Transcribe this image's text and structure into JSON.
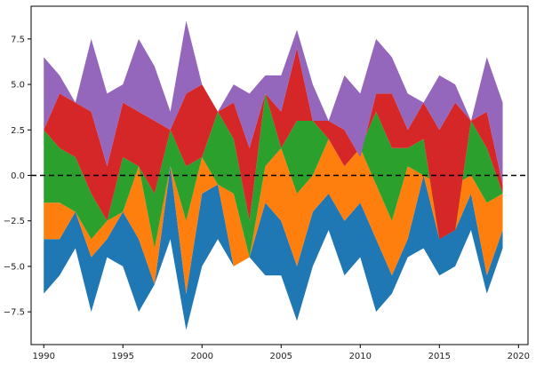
{
  "chart_data": {
    "type": "area",
    "title": "",
    "xlabel": "",
    "ylabel": "",
    "xlim": [
      1989.2,
      2020.6
    ],
    "ylim": [
      -9.3,
      9.3
    ],
    "x": [
      1990,
      1991,
      1992,
      1993,
      1994,
      1995,
      1996,
      1997,
      1998,
      1999,
      2000,
      2001,
      2002,
      2003,
      2004,
      2005,
      2006,
      2007,
      2008,
      2009,
      2010,
      2011,
      2012,
      2013,
      2014,
      2015,
      2016,
      2017,
      2018,
      2019
    ],
    "x_ticks": [
      1990,
      1995,
      2000,
      2005,
      2010,
      2015,
      2020
    ],
    "y_ticks": [
      -7.5,
      -5.0,
      -2.5,
      0.0,
      2.5,
      5.0,
      7.5
    ],
    "x_tick_labels": [
      "1990",
      "1995",
      "2000",
      "2005",
      "2010",
      "2015",
      "2020"
    ],
    "y_tick_labels": [
      "−7.5",
      "−5.0",
      "−2.5",
      "0.0",
      "2.5",
      "5.0",
      "7.5"
    ],
    "reference_line": {
      "y": 0,
      "style": "dashed",
      "color": "#000000"
    },
    "grid": false,
    "legend": "none",
    "boundaries": {
      "bottom": [
        -6.5,
        -5.5,
        -4.0,
        -7.5,
        -4.5,
        -5.0,
        -7.5,
        -6.0,
        -3.5,
        -8.5,
        -5.0,
        -3.5,
        -5.0,
        -4.5,
        -5.5,
        -5.5,
        -8.0,
        -5.0,
        -3.0,
        -5.5,
        -4.5,
        -7.5,
        -6.5,
        -4.5,
        -4.0,
        -5.5,
        -5.0,
        -3.0,
        -6.5,
        -4.0
      ],
      "b1": [
        -3.5,
        -3.5,
        -2.0,
        -4.5,
        -3.5,
        -2.0,
        -3.5,
        -6.0,
        0.5,
        -6.5,
        -1.0,
        -0.5,
        -5.0,
        -4.5,
        -1.5,
        -2.5,
        -5.0,
        -2.0,
        -1.0,
        -2.5,
        -1.5,
        -3.5,
        -5.5,
        -3.5,
        0.0,
        -3.5,
        -3.0,
        -1.0,
        -5.5,
        -3.0
      ],
      "b2": [
        -1.5,
        -1.5,
        -2.0,
        -3.5,
        -2.5,
        -2.0,
        0.5,
        -4.0,
        0.5,
        -2.5,
        1.0,
        -0.5,
        -1.0,
        -4.5,
        0.5,
        1.5,
        -1.0,
        0.0,
        2.0,
        0.5,
        1.5,
        -0.5,
        -2.5,
        0.5,
        0.0,
        -0.5,
        -0.5,
        0.0,
        -1.5,
        -1.0
      ],
      "b3": [
        2.5,
        1.5,
        1.0,
        -1.0,
        -2.5,
        1.0,
        0.5,
        -1.0,
        2.5,
        0.5,
        1.0,
        3.5,
        2.0,
        -2.5,
        4.5,
        1.5,
        3.0,
        3.0,
        2.0,
        0.5,
        1.5,
        3.5,
        1.5,
        1.5,
        2.0,
        -3.5,
        -3.0,
        3.0,
        1.5,
        -1.0
      ],
      "b4": [
        2.5,
        4.5,
        4.0,
        3.5,
        0.5,
        4.0,
        3.5,
        3.0,
        2.5,
        4.5,
        5.0,
        3.5,
        4.0,
        1.5,
        4.5,
        3.5,
        7.0,
        3.0,
        3.0,
        2.5,
        1.0,
        4.5,
        4.5,
        2.5,
        4.0,
        2.5,
        4.0,
        3.0,
        3.5,
        -0.5
      ],
      "top": [
        6.5,
        5.5,
        4.0,
        7.5,
        4.5,
        5.0,
        7.5,
        6.0,
        3.5,
        8.5,
        5.0,
        3.5,
        5.0,
        4.5,
        5.5,
        5.5,
        8.0,
        5.0,
        3.0,
        5.5,
        4.5,
        7.5,
        6.5,
        4.5,
        4.0,
        5.5,
        5.0,
        3.0,
        6.5,
        4.0
      ]
    },
    "series": [
      {
        "color": "#1f77b4",
        "from": "bottom",
        "to": "b1"
      },
      {
        "color": "#ff7f0e",
        "from": "b1",
        "to": "b2"
      },
      {
        "color": "#2ca02c",
        "from": "b2",
        "to": "b3"
      },
      {
        "color": "#d62728",
        "from": "b3",
        "to": "b4"
      },
      {
        "color": "#9467bd",
        "from": "b4",
        "to": "top"
      }
    ]
  }
}
